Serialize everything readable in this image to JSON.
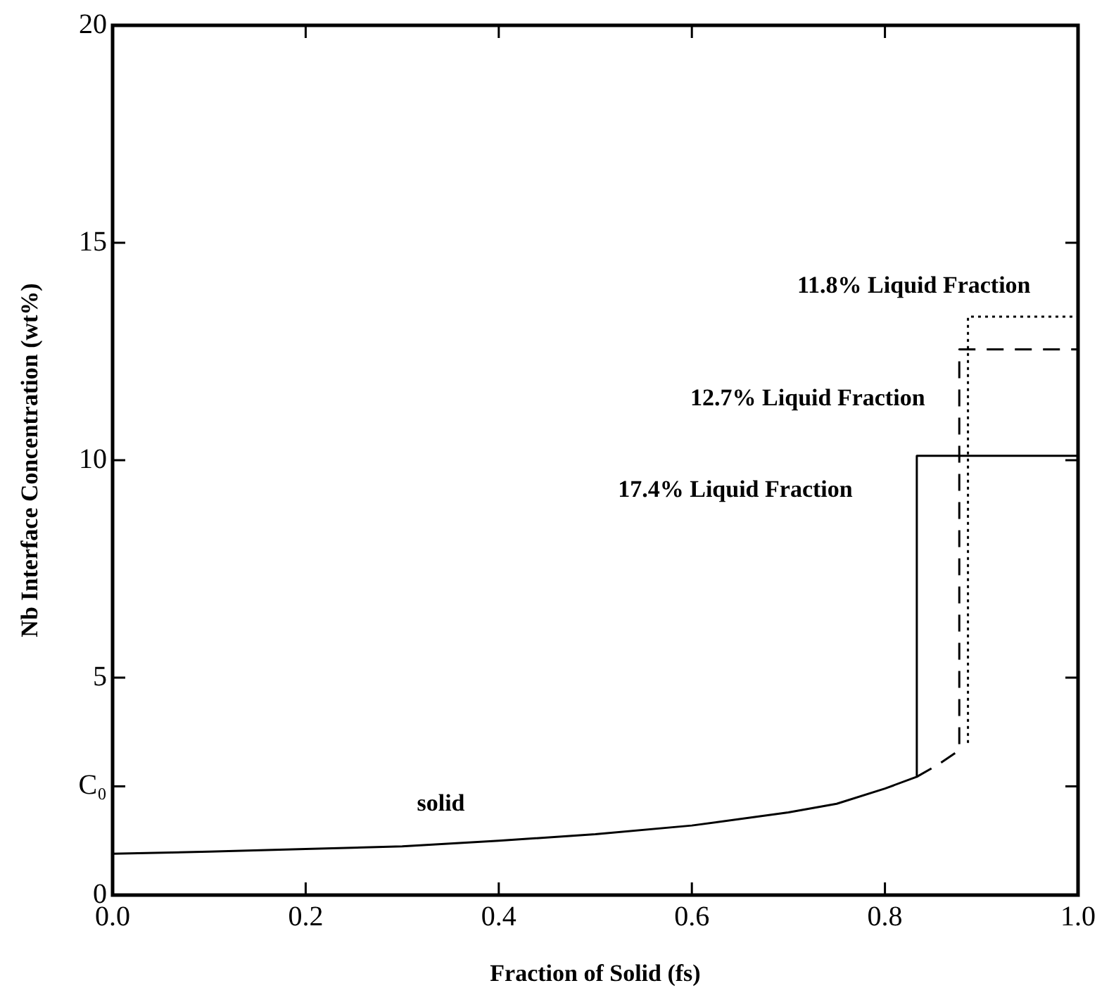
{
  "chart_data": {
    "type": "line",
    "xlabel": "Fraction of Solid (fs)",
    "ylabel": "Nb Interface Concentration (wt%)",
    "xlim": [
      0,
      1
    ],
    "ylim": [
      0,
      20
    ],
    "xticks": [
      {
        "value": 0,
        "label": "0.0"
      },
      0.2,
      0.4,
      0.6,
      0.8,
      {
        "value": 1,
        "label": "1.0"
      }
    ],
    "yticks": [
      0,
      {
        "value": 2.5,
        "label": "C₀"
      },
      5,
      10,
      15,
      20
    ],
    "grid": false,
    "legend": false,
    "marker": "none",
    "series": [
      {
        "color": "#000000",
        "line_style": "solid",
        "x": [
          0,
          0.1,
          0.2,
          0.3,
          0.4,
          0.5,
          0.6,
          0.7,
          0.75,
          0.8,
          0.833,
          0.833,
          1.0
        ],
        "values": [
          0.95,
          1.0,
          1.06,
          1.12,
          1.25,
          1.4,
          1.6,
          1.9,
          2.1,
          2.45,
          2.72,
          10.1,
          10.1
        ]
      },
      {
        "color": "#000000",
        "line_style": "dashed",
        "x": [
          0.833,
          0.855,
          0.877,
          0.877,
          1.0
        ],
        "values": [
          2.72,
          3.0,
          3.33,
          12.55,
          12.55
        ]
      },
      {
        "color": "#000000",
        "line_style": "dotted",
        "x": [
          0.886,
          0.886,
          1.0
        ],
        "values": [
          3.5,
          13.3,
          13.3
        ]
      }
    ],
    "annotations": [
      "11.8% Liquid Fraction",
      "12.7% Liquid Fraction",
      "17.4% Liquid Fraction",
      "solid"
    ]
  }
}
